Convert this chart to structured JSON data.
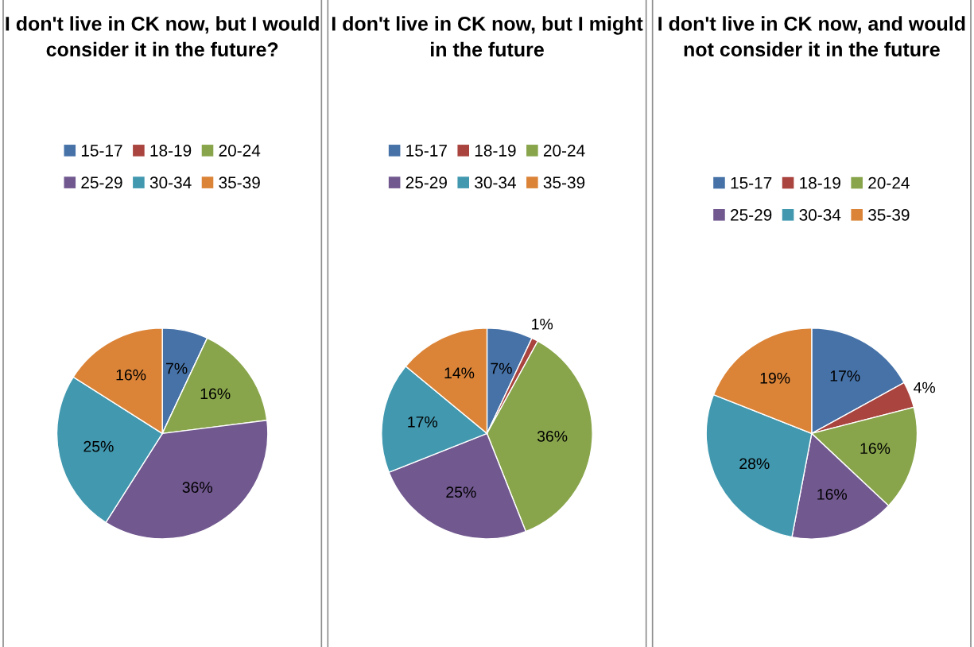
{
  "chart_data": [
    {
      "type": "pie",
      "title": "I don't live in CK now, but I would consider it in the future?",
      "categories": [
        "15-17",
        "18-19",
        "20-24",
        "25-29",
        "30-34",
        "35-39"
      ],
      "values": [
        7,
        0,
        16,
        36,
        25,
        16
      ],
      "colors": [
        "#4672a8",
        "#a9443f",
        "#88a54b",
        "#71588f",
        "#4198af",
        "#db8438"
      ],
      "value_labels": [
        "7%",
        null,
        "16%",
        "36%",
        "25%",
        "16%"
      ],
      "legend": "top"
    },
    {
      "type": "pie",
      "title": "I don't live in CK now, but I might in the future",
      "categories": [
        "15-17",
        "18-19",
        "20-24",
        "25-29",
        "30-34",
        "35-39"
      ],
      "values": [
        7,
        1,
        36,
        25,
        17,
        14
      ],
      "colors": [
        "#4672a8",
        "#a9443f",
        "#88a54b",
        "#71588f",
        "#4198af",
        "#db8438"
      ],
      "value_labels": [
        "7%",
        "1%",
        "36%",
        "25%",
        "17%",
        "14%"
      ],
      "legend": "top"
    },
    {
      "type": "pie",
      "title": "I don't live in CK now, and would not consider it in the future",
      "categories": [
        "15-17",
        "18-19",
        "20-24",
        "25-29",
        "30-34",
        "35-39"
      ],
      "values": [
        17,
        4,
        16,
        16,
        28,
        19
      ],
      "colors": [
        "#4672a8",
        "#a9443f",
        "#88a54b",
        "#71588f",
        "#4198af",
        "#db8438"
      ],
      "value_labels": [
        "17%",
        "4%",
        "16%",
        "16%",
        "28%",
        "19%"
      ],
      "legend": "top"
    }
  ]
}
